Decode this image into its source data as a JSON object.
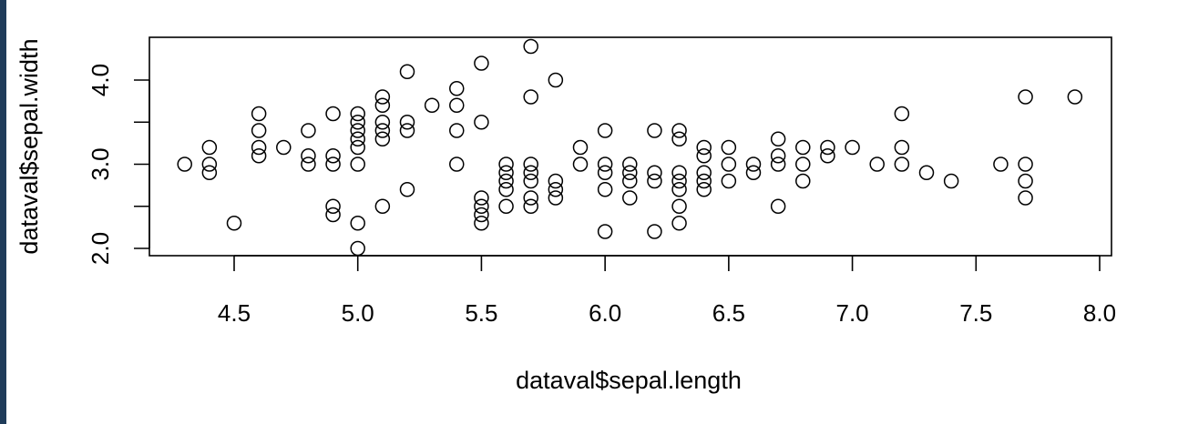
{
  "chart_data": {
    "type": "scatter",
    "title": "",
    "xlabel": "dataval$sepal.length",
    "ylabel": "dataval$sepal.width",
    "xlim": [
      4.17,
      8.02
    ],
    "ylim": [
      1.95,
      4.45
    ],
    "xticks": [
      4.5,
      5.0,
      5.5,
      6.0,
      6.5,
      7.0,
      7.5,
      8.0
    ],
    "xtick_labels": [
      "4.5",
      "5.0",
      "5.5",
      "6.0",
      "6.5",
      "7.0",
      "7.5",
      "8.0"
    ],
    "yticks": [
      2.0,
      2.5,
      3.0,
      3.5,
      4.0
    ],
    "ytick_labels": [
      "2.0",
      "",
      "3.0",
      "",
      "4.0"
    ],
    "grid": false,
    "marker": "open-circle",
    "marker_color": "#000000",
    "points": [
      [
        4.3,
        3.0
      ],
      [
        4.4,
        3.2
      ],
      [
        4.4,
        3.0
      ],
      [
        4.4,
        2.9
      ],
      [
        4.5,
        2.3
      ],
      [
        4.6,
        3.6
      ],
      [
        4.6,
        3.4
      ],
      [
        4.6,
        3.2
      ],
      [
        4.6,
        3.1
      ],
      [
        4.7,
        3.2
      ],
      [
        4.8,
        3.4
      ],
      [
        4.8,
        3.1
      ],
      [
        4.8,
        3.0
      ],
      [
        4.9,
        3.6
      ],
      [
        4.9,
        3.1
      ],
      [
        4.9,
        3.0
      ],
      [
        4.9,
        2.5
      ],
      [
        4.9,
        2.4
      ],
      [
        5.0,
        3.6
      ],
      [
        5.0,
        3.5
      ],
      [
        5.0,
        3.4
      ],
      [
        5.0,
        3.3
      ],
      [
        5.0,
        3.2
      ],
      [
        5.0,
        3.0
      ],
      [
        5.0,
        2.3
      ],
      [
        5.0,
        2.0
      ],
      [
        5.1,
        3.8
      ],
      [
        5.1,
        3.7
      ],
      [
        5.1,
        3.5
      ],
      [
        5.1,
        3.4
      ],
      [
        5.1,
        3.3
      ],
      [
        5.1,
        2.5
      ],
      [
        5.2,
        4.1
      ],
      [
        5.2,
        3.5
      ],
      [
        5.2,
        3.4
      ],
      [
        5.2,
        2.7
      ],
      [
        5.3,
        3.7
      ],
      [
        5.4,
        3.9
      ],
      [
        5.4,
        3.7
      ],
      [
        5.4,
        3.4
      ],
      [
        5.4,
        3.0
      ],
      [
        5.5,
        4.2
      ],
      [
        5.5,
        3.5
      ],
      [
        5.5,
        2.6
      ],
      [
        5.5,
        2.5
      ],
      [
        5.5,
        2.4
      ],
      [
        5.5,
        2.3
      ],
      [
        5.6,
        3.0
      ],
      [
        5.6,
        2.9
      ],
      [
        5.6,
        2.8
      ],
      [
        5.6,
        2.7
      ],
      [
        5.6,
        2.5
      ],
      [
        5.7,
        4.4
      ],
      [
        5.7,
        3.8
      ],
      [
        5.7,
        3.0
      ],
      [
        5.7,
        2.9
      ],
      [
        5.7,
        2.8
      ],
      [
        5.7,
        2.6
      ],
      [
        5.7,
        2.5
      ],
      [
        5.8,
        4.0
      ],
      [
        5.8,
        2.8
      ],
      [
        5.8,
        2.7
      ],
      [
        5.8,
        2.6
      ],
      [
        5.9,
        3.2
      ],
      [
        5.9,
        3.0
      ],
      [
        6.0,
        3.4
      ],
      [
        6.0,
        3.0
      ],
      [
        6.0,
        2.9
      ],
      [
        6.0,
        2.7
      ],
      [
        6.0,
        2.2
      ],
      [
        6.1,
        3.0
      ],
      [
        6.1,
        2.9
      ],
      [
        6.1,
        2.8
      ],
      [
        6.1,
        2.6
      ],
      [
        6.2,
        3.4
      ],
      [
        6.2,
        2.9
      ],
      [
        6.2,
        2.8
      ],
      [
        6.2,
        2.2
      ],
      [
        6.3,
        3.4
      ],
      [
        6.3,
        3.3
      ],
      [
        6.3,
        2.9
      ],
      [
        6.3,
        2.8
      ],
      [
        6.3,
        2.7
      ],
      [
        6.3,
        2.5
      ],
      [
        6.3,
        2.3
      ],
      [
        6.4,
        3.2
      ],
      [
        6.4,
        3.1
      ],
      [
        6.4,
        2.9
      ],
      [
        6.4,
        2.8
      ],
      [
        6.4,
        2.7
      ],
      [
        6.5,
        3.2
      ],
      [
        6.5,
        3.0
      ],
      [
        6.5,
        2.8
      ],
      [
        6.6,
        3.0
      ],
      [
        6.6,
        2.9
      ],
      [
        6.7,
        3.3
      ],
      [
        6.7,
        3.1
      ],
      [
        6.7,
        3.0
      ],
      [
        6.7,
        2.5
      ],
      [
        6.8,
        3.2
      ],
      [
        6.8,
        3.0
      ],
      [
        6.8,
        2.8
      ],
      [
        6.9,
        3.2
      ],
      [
        6.9,
        3.1
      ],
      [
        7.0,
        3.2
      ],
      [
        7.1,
        3.0
      ],
      [
        7.2,
        3.6
      ],
      [
        7.2,
        3.2
      ],
      [
        7.2,
        3.0
      ],
      [
        7.3,
        2.9
      ],
      [
        7.4,
        2.8
      ],
      [
        7.6,
        3.0
      ],
      [
        7.7,
        3.8
      ],
      [
        7.7,
        3.0
      ],
      [
        7.7,
        2.8
      ],
      [
        7.7,
        2.6
      ],
      [
        7.9,
        3.8
      ]
    ]
  }
}
